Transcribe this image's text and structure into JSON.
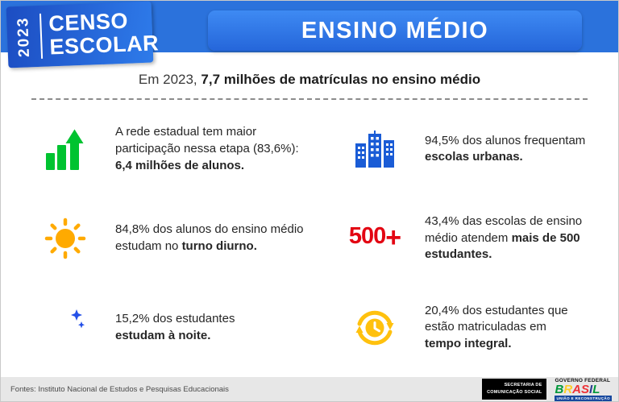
{
  "colors": {
    "header_band": "#2b72dc",
    "banner_blue": "#2f7cec",
    "chart_green": "#00c330",
    "building_blue": "#1a5cd6",
    "sun_orange": "#ffaa00",
    "red_500": "#e30613",
    "moon_blue": "#2450e8",
    "clock_yellow": "#ffc10e",
    "footer_gray": "#e7e7e7",
    "gov_strip_blue": "#16489e"
  },
  "header": {
    "year": "2023",
    "logo_line1": "CENSO",
    "logo_line2": "ESCOLAR",
    "banner": "ENSINO MÉDIO"
  },
  "subtitle": {
    "regular": "Em 2023, ",
    "bold": "7,7 milhões de matrículas no ensino médio"
  },
  "items": [
    {
      "icon": "growth-chart-icon",
      "pre": "A rede estadual tem maior participação nessa etapa (83,6%): ",
      "bold": "6,4 milhões de alunos."
    },
    {
      "icon": "city-buildings-icon",
      "pre": "94,5% dos alunos frequentam ",
      "bold": "escolas urbanas."
    },
    {
      "icon": "sun-icon",
      "pre": "84,8% dos alunos do ensino médio estudam no ",
      "bold": "turno diurno."
    },
    {
      "icon": "500-plus-icon",
      "icon_text": "500",
      "icon_plus": "+",
      "pre": "43,4% das escolas de ensino médio atendem ",
      "bold": "mais de 500 estudantes."
    },
    {
      "icon": "moon-stars-icon",
      "pre": "15,2% dos estudantes ",
      "bold": "estudam à noite."
    },
    {
      "icon": "clock-refresh-icon",
      "pre": "20,4% dos estudantes que estão matriculadas em ",
      "bold": "tempo integral."
    }
  ],
  "footer": {
    "sources": "Fontes: Instituto Nacional de Estudos e Pesquisas Educacionais",
    "secom_line1": "SECRETARIA DE",
    "secom_line2": "COMUNICAÇÃO SOCIAL",
    "gov_top": "GOVERNO FEDERAL",
    "gov_bottom": "UNIÃO E RECONSTRUÇÃO",
    "brand_letters": [
      {
        "ch": "B",
        "color": "#009739"
      },
      {
        "ch": "R",
        "color": "#ffcc29"
      },
      {
        "ch": "A",
        "color": "#ed3237"
      },
      {
        "ch": "S",
        "color": "#ed3237"
      },
      {
        "ch": "I",
        "color": "#2a3b8f"
      },
      {
        "ch": "L",
        "color": "#009739"
      }
    ]
  }
}
